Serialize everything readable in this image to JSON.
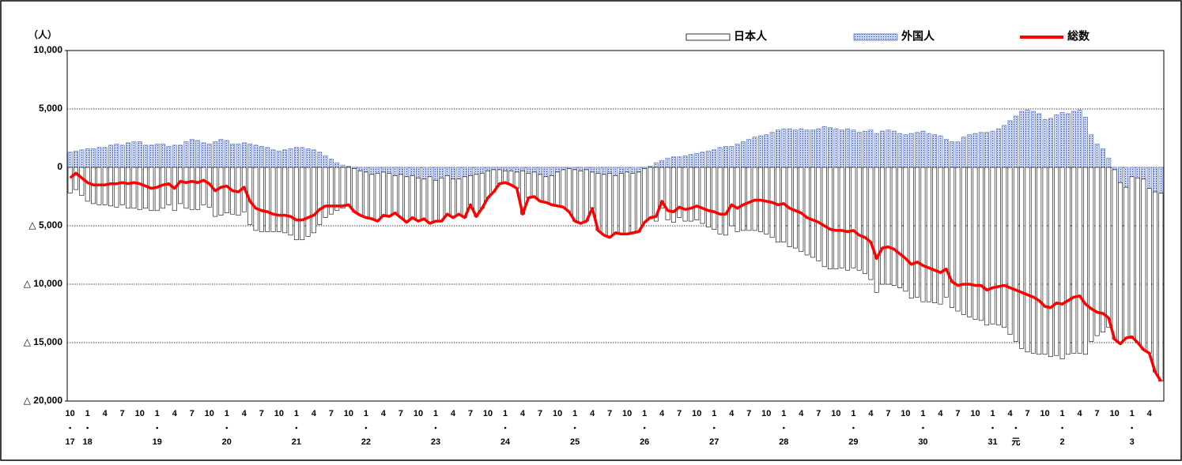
{
  "chart_data": {
    "type": "bar",
    "stacked": true,
    "legend": "top-right",
    "grid": true,
    "y_unit_label": "（人）",
    "ylim": [
      -20000,
      10000
    ],
    "yticks": [
      {
        "value": 10000,
        "label": "10,000"
      },
      {
        "value": 5000,
        "label": "5,000"
      },
      0,
      {
        "value": -5000,
        "label": "△ 5,000"
      },
      {
        "value": -10000,
        "label": "△ 10,000"
      },
      {
        "value": -15000,
        "label": "△ 15,000"
      },
      {
        "value": -20000,
        "label": "△ 20,000"
      }
    ],
    "categories": [
      "10",
      null,
      null,
      "1",
      null,
      null,
      "4",
      null,
      null,
      "7",
      null,
      null,
      "10",
      null,
      null,
      "1",
      null,
      null,
      "4",
      null,
      null,
      "7",
      null,
      null,
      "10",
      null,
      null,
      "1",
      null,
      null,
      "4",
      null,
      null,
      "7",
      null,
      null,
      "10",
      null,
      null,
      "1",
      null,
      null,
      "4",
      null,
      null,
      "7",
      null,
      null,
      "10",
      null,
      null,
      "1",
      null,
      null,
      "4",
      null,
      null,
      "7",
      null,
      null,
      "10",
      null,
      null,
      "1",
      null,
      null,
      "4",
      null,
      null,
      "7",
      null,
      null,
      "10",
      null,
      null,
      "1",
      null,
      null,
      "4",
      null,
      null,
      "7",
      null,
      null,
      "10",
      null,
      null,
      "1",
      null,
      null,
      "4",
      null,
      null,
      "7",
      null,
      null,
      "10",
      null,
      null,
      "1",
      null,
      null,
      "4",
      null,
      null,
      "7",
      null,
      null,
      "10",
      null,
      null,
      "1",
      null,
      null,
      "4",
      null,
      null,
      "7",
      null,
      null,
      "10",
      null,
      null,
      "1",
      null,
      null,
      "4",
      null,
      null,
      "7",
      null,
      null,
      "10",
      null,
      null,
      "1",
      null,
      null,
      "4",
      null,
      null,
      "7",
      null,
      null,
      "10",
      null,
      null,
      "1",
      null,
      null,
      "4",
      null,
      null,
      "7",
      null,
      null,
      "10",
      null,
      null,
      "1",
      null,
      null,
      "4",
      null,
      null,
      "7",
      null,
      null,
      "10",
      null,
      null,
      "1",
      null,
      null,
      "4",
      null,
      null,
      "7",
      null,
      null,
      "10",
      null,
      null,
      "1",
      null,
      null,
      "4",
      null,
      null
    ],
    "year_labels": [
      "17",
      null,
      null,
      "18",
      null,
      null,
      null,
      null,
      null,
      null,
      null,
      null,
      null,
      null,
      null,
      "19",
      null,
      null,
      null,
      null,
      null,
      null,
      null,
      null,
      null,
      null,
      null,
      "20",
      null,
      null,
      null,
      null,
      null,
      null,
      null,
      null,
      null,
      null,
      null,
      "21",
      null,
      null,
      null,
      null,
      null,
      null,
      null,
      null,
      null,
      null,
      null,
      "22",
      null,
      null,
      null,
      null,
      null,
      null,
      null,
      null,
      null,
      null,
      null,
      "23",
      null,
      null,
      null,
      null,
      null,
      null,
      null,
      null,
      null,
      null,
      null,
      "24",
      null,
      null,
      null,
      null,
      null,
      null,
      null,
      null,
      null,
      null,
      null,
      "25",
      null,
      null,
      null,
      null,
      null,
      null,
      null,
      null,
      null,
      null,
      null,
      "26",
      null,
      null,
      null,
      null,
      null,
      null,
      null,
      null,
      null,
      null,
      null,
      "27",
      null,
      null,
      null,
      null,
      null,
      null,
      null,
      null,
      null,
      null,
      null,
      "28",
      null,
      null,
      null,
      null,
      null,
      null,
      null,
      null,
      null,
      null,
      null,
      "29",
      null,
      null,
      null,
      null,
      null,
      null,
      null,
      null,
      null,
      null,
      null,
      "30",
      null,
      null,
      null,
      null,
      null,
      null,
      null,
      null,
      null,
      null,
      null,
      "31",
      null,
      null,
      null,
      "元",
      null,
      null,
      null,
      null,
      null,
      null,
      null,
      "2",
      null,
      null,
      null,
      null,
      null,
      null,
      null,
      null,
      null,
      null,
      null,
      "3",
      null,
      null,
      null,
      null,
      null
    ],
    "series": [
      {
        "name": "日本人",
        "type": "bar",
        "color": "#ffffff",
        "values": [
          -2200,
          -1900,
          -2400,
          -2900,
          -3100,
          -3200,
          -3200,
          -3300,
          -3400,
          -3200,
          -3500,
          -3500,
          -3600,
          -3500,
          -3700,
          -3700,
          -3500,
          -3200,
          -3700,
          -3100,
          -3500,
          -3600,
          -3600,
          -3200,
          -3400,
          -4200,
          -4100,
          -3900,
          -4000,
          -4100,
          -3800,
          -4900,
          -5400,
          -5500,
          -5500,
          -5500,
          -5500,
          -5600,
          -5800,
          -6200,
          -6200,
          -5900,
          -5600,
          -4900,
          -4300,
          -4000,
          -3700,
          -3500,
          -3300,
          -3700,
          -3800,
          -3900,
          -3800,
          -4100,
          -3700,
          -3700,
          -3200,
          -3700,
          -3900,
          -3600,
          -3700,
          -3400,
          -4000,
          -3500,
          -3700,
          -3300,
          -3300,
          -3000,
          -3500,
          -2500,
          -3600,
          -3000,
          -2300,
          -1900,
          -1200,
          -1000,
          -1200,
          -1400,
          -3700,
          -2100,
          -2100,
          -2300,
          -2200,
          -2500,
          -2900,
          -3200,
          -3700,
          -4400,
          -4500,
          -4400,
          -3100,
          -4900,
          -5200,
          -5500,
          -4900,
          -5200,
          -5300,
          -5100,
          -5100,
          -4600,
          -4400,
          -4600,
          -3500,
          -4500,
          -4700,
          -4300,
          -4600,
          -4600,
          -4500,
          -4800,
          -5100,
          -5300,
          -5700,
          -5800,
          -5000,
          -5500,
          -5400,
          -5400,
          -5400,
          -5500,
          -5700,
          -6000,
          -6400,
          -6400,
          -6800,
          -6900,
          -7200,
          -7500,
          -7700,
          -8000,
          -8500,
          -8700,
          -8700,
          -8600,
          -8800,
          -8600,
          -8800,
          -9100,
          -9600,
          -10700,
          -10000,
          -10000,
          -10100,
          -10300,
          -10600,
          -11200,
          -11100,
          -11500,
          -11500,
          -11600,
          -11700,
          -11100,
          -12000,
          -12300,
          -12600,
          -12800,
          -13000,
          -13100,
          -13500,
          -13400,
          -13500,
          -13700,
          -14300,
          -14900,
          -15500,
          -15800,
          -15900,
          -16000,
          -16000,
          -16200,
          -16100,
          -16400,
          -16000,
          -15900,
          -15900,
          -16000,
          -14900,
          -14400,
          -14100,
          -13700,
          -14500,
          -13800,
          -12900,
          -13700,
          -14100,
          -14600,
          -14100,
          -15400,
          -16100
        ]
      },
      {
        "name": "外国人",
        "type": "bar",
        "color": "#aebde8",
        "values": [
          1300,
          1400,
          1500,
          1600,
          1600,
          1700,
          1700,
          1900,
          2000,
          1900,
          2100,
          2200,
          2200,
          1900,
          1900,
          2000,
          2000,
          1800,
          1900,
          1900,
          2200,
          2400,
          2300,
          2100,
          2000,
          2200,
          2400,
          2300,
          2000,
          2000,
          2100,
          2000,
          1900,
          1800,
          1700,
          1500,
          1400,
          1500,
          1600,
          1700,
          1700,
          1600,
          1500,
          1300,
          1000,
          700,
          400,
          200,
          100,
          -100,
          -300,
          -400,
          -600,
          -500,
          -400,
          -500,
          -700,
          -600,
          -800,
          -700,
          -900,
          -1000,
          -800,
          -1100,
          -900,
          -700,
          -1000,
          -1000,
          -800,
          -700,
          -600,
          -500,
          -300,
          -200,
          -200,
          -300,
          -300,
          -400,
          -300,
          -500,
          -400,
          -600,
          -800,
          -700,
          -400,
          -200,
          -100,
          -200,
          -300,
          -200,
          -400,
          -500,
          -600,
          -500,
          -700,
          -500,
          -400,
          -500,
          -400,
          -100,
          100,
          400,
          600,
          800,
          900,
          900,
          1000,
          1100,
          1200,
          1300,
          1400,
          1500,
          1700,
          1800,
          1800,
          2000,
          2200,
          2400,
          2600,
          2700,
          2800,
          3000,
          3200,
          3300,
          3300,
          3200,
          3300,
          3200,
          3200,
          3300,
          3500,
          3400,
          3300,
          3200,
          3300,
          3200,
          3000,
          3100,
          3200,
          2900,
          3100,
          3200,
          3100,
          2900,
          2800,
          2900,
          3000,
          3100,
          2900,
          2800,
          2700,
          2400,
          2200,
          2200,
          2600,
          2800,
          2900,
          3000,
          3000,
          3100,
          3300,
          3600,
          4000,
          4400,
          4800,
          4900,
          4800,
          4600,
          4100,
          4200,
          4500,
          4700,
          4600,
          4800,
          4900,
          4300,
          2800,
          2000,
          1600,
          800,
          -200,
          -1300,
          -1700,
          -800,
          -900,
          -1000,
          -1800,
          -2100,
          -2200
        ]
      },
      {
        "name": "総数",
        "type": "line",
        "color": "#ff0000",
        "values": [
          -900,
          -500,
          -900,
          -1300,
          -1500,
          -1500,
          -1500,
          -1400,
          -1400,
          -1300,
          -1400,
          -1300,
          -1400,
          -1600,
          -1800,
          -1700,
          -1500,
          -1400,
          -1800,
          -1200,
          -1300,
          -1200,
          -1300,
          -1100,
          -1400,
          -2000,
          -1700,
          -1600,
          -2000,
          -2100,
          -1700,
          -2900,
          -3500,
          -3700,
          -3800,
          -4000,
          -4100,
          -4100,
          -4200,
          -4500,
          -4500,
          -4300,
          -4100,
          -3600,
          -3300,
          -3300,
          -3300,
          -3300,
          -3200,
          -3800,
          -4100,
          -4300,
          -4400,
          -4600,
          -4100,
          -4200,
          -3900,
          -4300,
          -4700,
          -4300,
          -4600,
          -4400,
          -4800,
          -4600,
          -4600,
          -4000,
          -4300,
          -4000,
          -4300,
          -3200,
          -4200,
          -3500,
          -2600,
          -2100,
          -1400,
          -1300,
          -1500,
          -1800,
          -4000,
          -2600,
          -2500,
          -2900,
          -3000,
          -3200,
          -3300,
          -3400,
          -3800,
          -4600,
          -4800,
          -4600,
          -3500,
          -5400,
          -5800,
          -6000,
          -5600,
          -5700,
          -5700,
          -5600,
          -5500,
          -4700,
          -4300,
          -4200,
          -2900,
          -3700,
          -3800,
          -3400,
          -3600,
          -3500,
          -3300,
          -3500,
          -3700,
          -3800,
          -4000,
          -4000,
          -3200,
          -3500,
          -3200,
          -3000,
          -2800,
          -2800,
          -2900,
          -3000,
          -3200,
          -3100,
          -3500,
          -3700,
          -3900,
          -4300,
          -4500,
          -4700,
          -5000,
          -5300,
          -5400,
          -5400,
          -5500,
          -5400,
          -5800,
          -6000,
          -6400,
          -7800,
          -6900,
          -6800,
          -7000,
          -7400,
          -7800,
          -8300,
          -8100,
          -8400,
          -8600,
          -8800,
          -9000,
          -8700,
          -9800,
          -10100,
          -10000,
          -10000,
          -10100,
          -10100,
          -10500,
          -10300,
          -10200,
          -10100,
          -10300,
          -10500,
          -10700,
          -10900,
          -11100,
          -11400,
          -11900,
          -12000,
          -11600,
          -11700,
          -11400,
          -11100,
          -11000,
          -11700,
          -12100,
          -12400,
          -12500,
          -12900,
          -14700,
          -15100,
          -14600,
          -14500,
          -15000,
          -15600,
          -15900,
          -17500,
          -18300
        ]
      }
    ]
  }
}
